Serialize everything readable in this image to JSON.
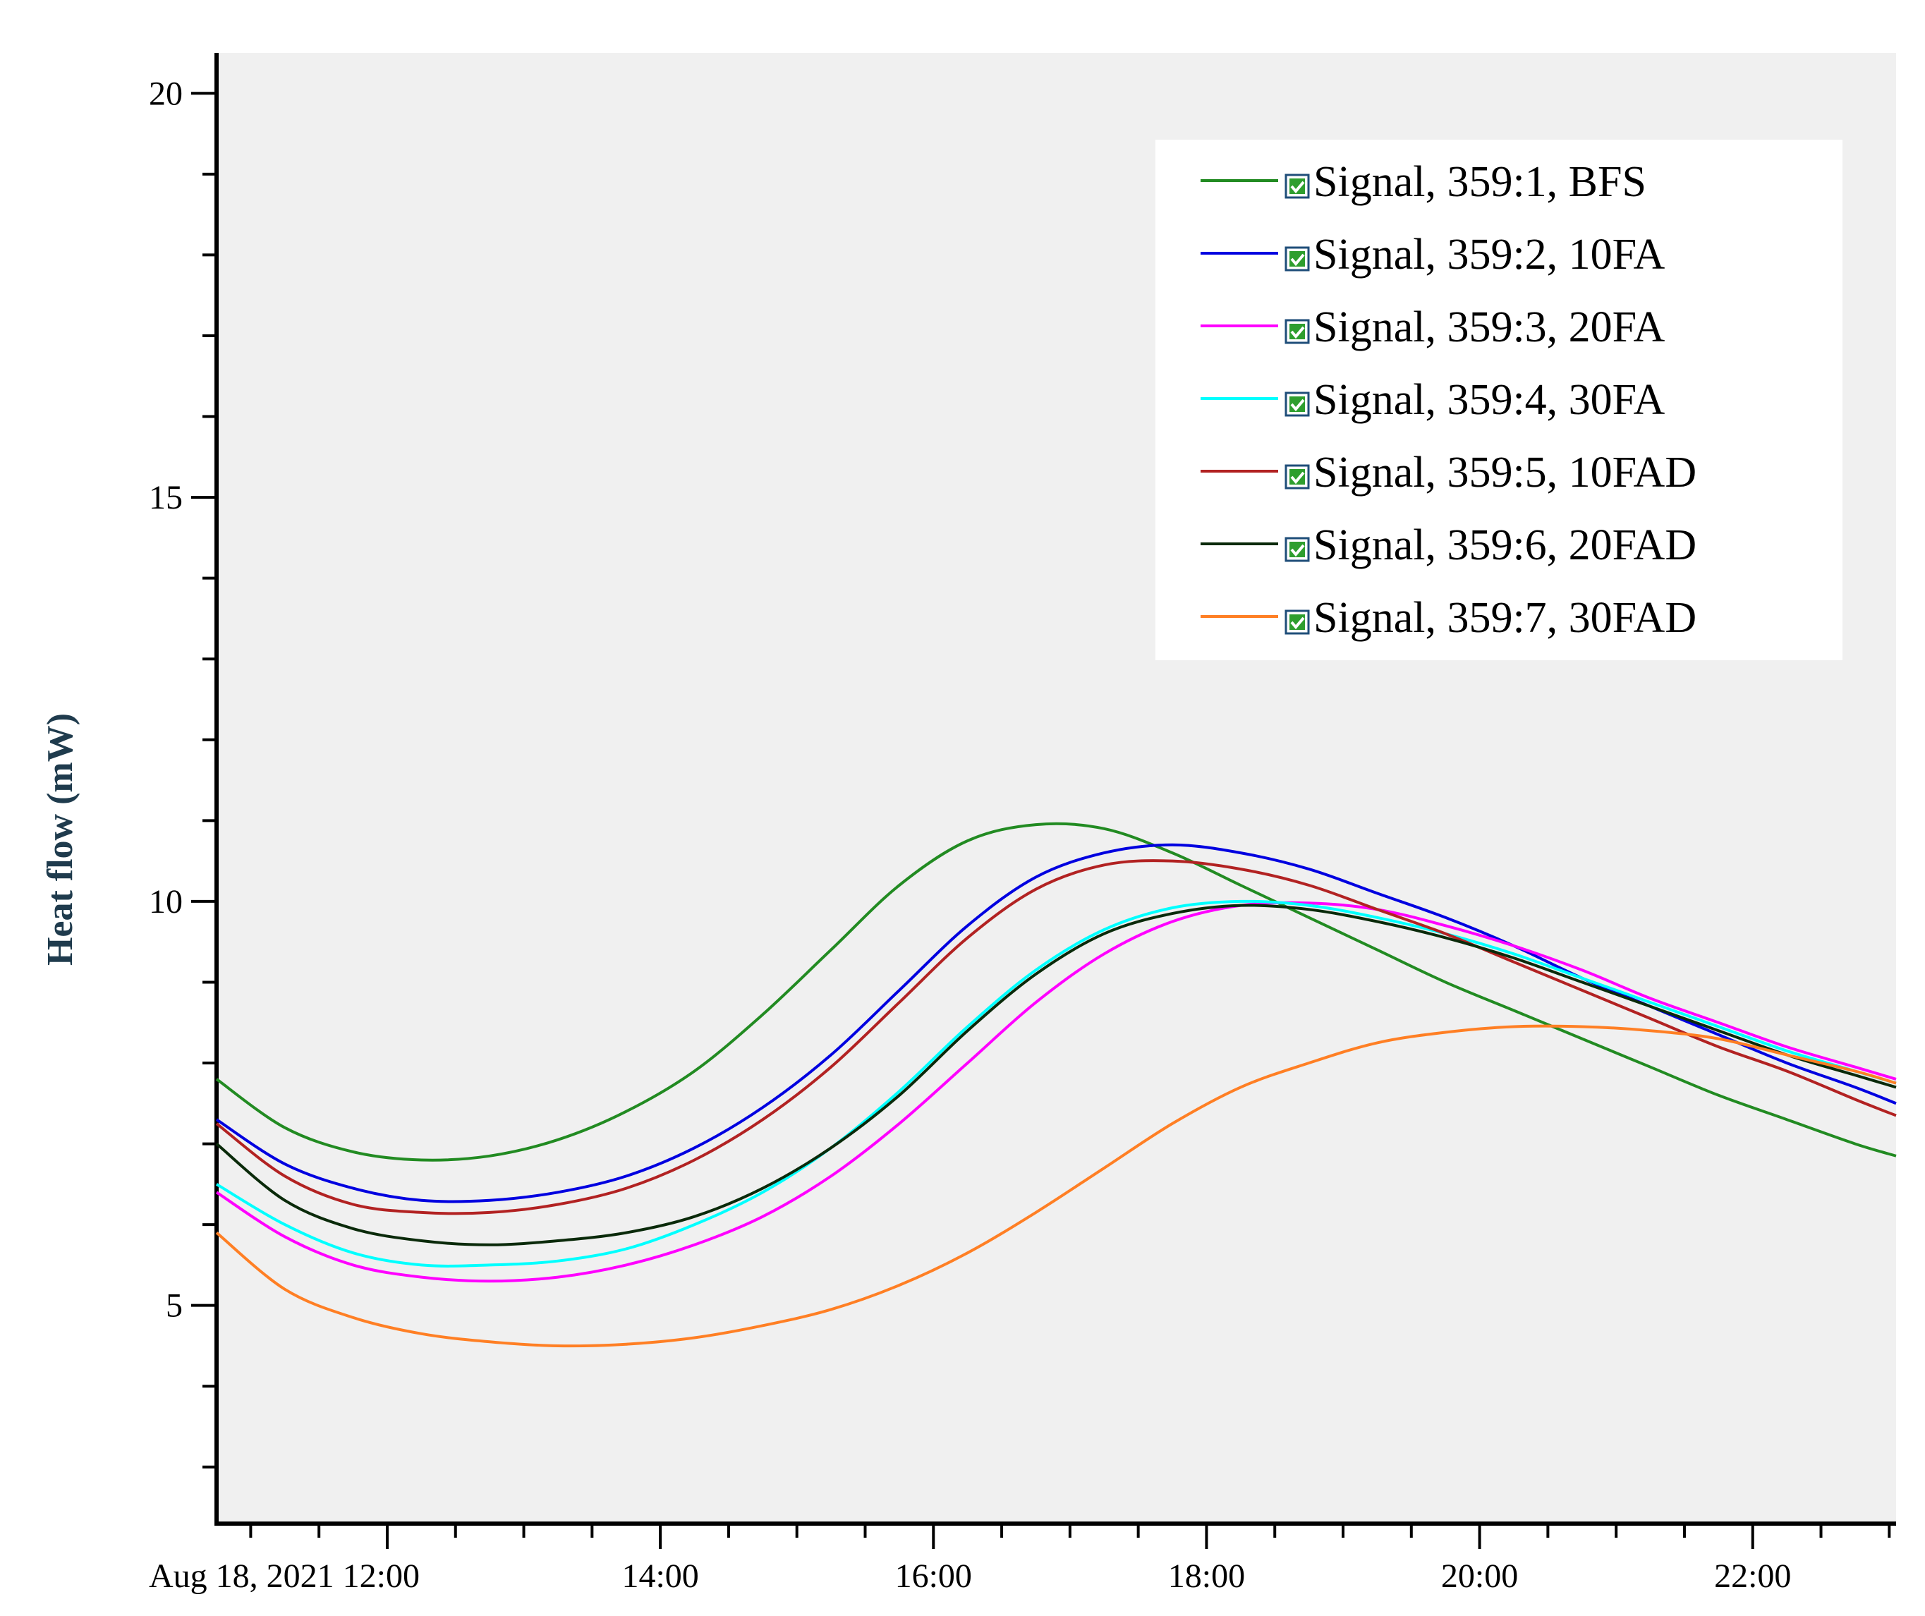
{
  "chart_data": {
    "type": "line",
    "title": "",
    "xlabel": "",
    "ylabel": "Heat flow (mW)",
    "x_unit": "hours",
    "xlim": [
      10.75,
      23.05
    ],
    "ylim": [
      2.3,
      20.5
    ],
    "y_major_ticks": [
      5,
      10,
      15,
      20
    ],
    "y_minor_step": 1,
    "x_ticks": [
      {
        "value": 12,
        "label": "Aug 18, 2021 12:00"
      },
      {
        "value": 14,
        "label": "14:00"
      },
      {
        "value": 16,
        "label": "16:00"
      },
      {
        "value": 18,
        "label": "18:00"
      },
      {
        "value": 20,
        "label": "20:00"
      },
      {
        "value": 22,
        "label": "22:00"
      }
    ],
    "x_minor_step": 0.5,
    "grid": false,
    "legend_position": "top-right",
    "series": [
      {
        "name": "Signal, 359:1, BFS",
        "color": "#228b22",
        "x": [
          10.75,
          11.25,
          11.75,
          12.25,
          12.75,
          13.25,
          13.75,
          14.25,
          14.75,
          15.25,
          15.75,
          16.25,
          16.75,
          17.25,
          17.75,
          18.25,
          18.75,
          19.25,
          19.75,
          20.25,
          20.75,
          21.25,
          21.75,
          22.25,
          22.75,
          23.05
        ],
        "y": [
          7.8,
          7.2,
          6.9,
          6.8,
          6.85,
          7.05,
          7.4,
          7.9,
          8.6,
          9.4,
          10.2,
          10.75,
          10.95,
          10.9,
          10.6,
          10.2,
          9.8,
          9.4,
          9.0,
          8.65,
          8.3,
          7.95,
          7.6,
          7.3,
          7.0,
          6.85
        ]
      },
      {
        "name": "Signal, 359:2, 10FA",
        "color": "#0000e0",
        "x": [
          10.75,
          11.25,
          11.75,
          12.25,
          12.75,
          13.25,
          13.75,
          14.25,
          14.75,
          15.25,
          15.75,
          16.25,
          16.75,
          17.25,
          17.75,
          18.25,
          18.75,
          19.25,
          19.75,
          20.25,
          20.75,
          21.25,
          21.75,
          22.25,
          22.75,
          23.05
        ],
        "y": [
          7.3,
          6.75,
          6.45,
          6.3,
          6.3,
          6.4,
          6.6,
          6.95,
          7.45,
          8.1,
          8.9,
          9.7,
          10.3,
          10.6,
          10.7,
          10.6,
          10.4,
          10.1,
          9.8,
          9.45,
          9.05,
          8.7,
          8.35,
          8.0,
          7.7,
          7.5
        ]
      },
      {
        "name": "Signal, 359:3, 20FA",
        "color": "#ff00ff",
        "x": [
          10.75,
          11.25,
          11.75,
          12.25,
          12.75,
          13.25,
          13.75,
          14.25,
          14.75,
          15.25,
          15.75,
          16.25,
          16.75,
          17.25,
          17.75,
          18.25,
          18.75,
          19.25,
          19.75,
          20.25,
          20.75,
          21.25,
          21.75,
          22.25,
          22.75,
          23.05
        ],
        "y": [
          6.4,
          5.85,
          5.5,
          5.35,
          5.3,
          5.35,
          5.5,
          5.75,
          6.1,
          6.6,
          7.25,
          8.0,
          8.75,
          9.35,
          9.75,
          9.95,
          9.98,
          9.9,
          9.7,
          9.45,
          9.15,
          8.8,
          8.5,
          8.2,
          7.95,
          7.8
        ]
      },
      {
        "name": "Signal, 359:4, 30FA",
        "color": "#00ffff",
        "x": [
          10.75,
          11.25,
          11.75,
          12.25,
          12.75,
          13.25,
          13.75,
          14.25,
          14.75,
          15.25,
          15.75,
          16.25,
          16.75,
          17.25,
          17.75,
          18.25,
          18.75,
          19.25,
          19.75,
          20.25,
          20.75,
          21.25,
          21.75,
          22.25,
          22.75,
          23.05
        ],
        "y": [
          6.5,
          6.0,
          5.65,
          5.5,
          5.5,
          5.55,
          5.7,
          6.0,
          6.4,
          6.95,
          7.65,
          8.45,
          9.15,
          9.65,
          9.92,
          10.0,
          9.95,
          9.8,
          9.6,
          9.35,
          9.05,
          8.75,
          8.45,
          8.15,
          7.9,
          7.75
        ]
      },
      {
        "name": "Signal, 359:5, 10FAD",
        "color": "#b22222",
        "x": [
          10.75,
          11.25,
          11.75,
          12.25,
          12.75,
          13.25,
          13.75,
          14.25,
          14.75,
          15.25,
          15.75,
          16.25,
          16.75,
          17.25,
          17.75,
          18.25,
          18.75,
          19.25,
          19.75,
          20.25,
          20.75,
          21.25,
          21.75,
          22.25,
          22.75,
          23.05
        ],
        "y": [
          7.25,
          6.6,
          6.25,
          6.15,
          6.15,
          6.25,
          6.45,
          6.8,
          7.3,
          7.95,
          8.75,
          9.55,
          10.15,
          10.45,
          10.5,
          10.4,
          10.2,
          9.9,
          9.6,
          9.25,
          8.9,
          8.55,
          8.2,
          7.9,
          7.55,
          7.35
        ]
      },
      {
        "name": "Signal, 359:6, 20FAD",
        "color": "#0a2a0a",
        "x": [
          10.75,
          11.25,
          11.75,
          12.25,
          12.75,
          13.25,
          13.75,
          14.25,
          14.75,
          15.25,
          15.75,
          16.25,
          16.75,
          17.25,
          17.75,
          18.25,
          18.75,
          19.25,
          19.75,
          20.25,
          20.75,
          21.25,
          21.75,
          22.25,
          22.75,
          23.05
        ],
        "y": [
          7.0,
          6.3,
          5.95,
          5.8,
          5.75,
          5.8,
          5.9,
          6.1,
          6.45,
          6.95,
          7.6,
          8.4,
          9.1,
          9.6,
          9.85,
          9.95,
          9.9,
          9.75,
          9.55,
          9.3,
          9.0,
          8.7,
          8.4,
          8.1,
          7.85,
          7.7
        ]
      },
      {
        "name": "Signal, 359:7, 30FAD",
        "color": "#ff7f24",
        "x": [
          10.75,
          11.25,
          11.75,
          12.25,
          12.75,
          13.25,
          13.75,
          14.25,
          14.75,
          15.25,
          15.75,
          16.25,
          16.75,
          17.25,
          17.75,
          18.25,
          18.75,
          19.25,
          19.75,
          20.25,
          20.75,
          21.25,
          21.75,
          22.25,
          22.75,
          23.05
        ],
        "y": [
          5.9,
          5.2,
          4.85,
          4.65,
          4.55,
          4.5,
          4.52,
          4.6,
          4.75,
          4.95,
          5.25,
          5.65,
          6.15,
          6.7,
          7.25,
          7.7,
          8.0,
          8.25,
          8.38,
          8.45,
          8.45,
          8.4,
          8.3,
          8.1,
          7.9,
          7.75
        ]
      }
    ]
  }
}
